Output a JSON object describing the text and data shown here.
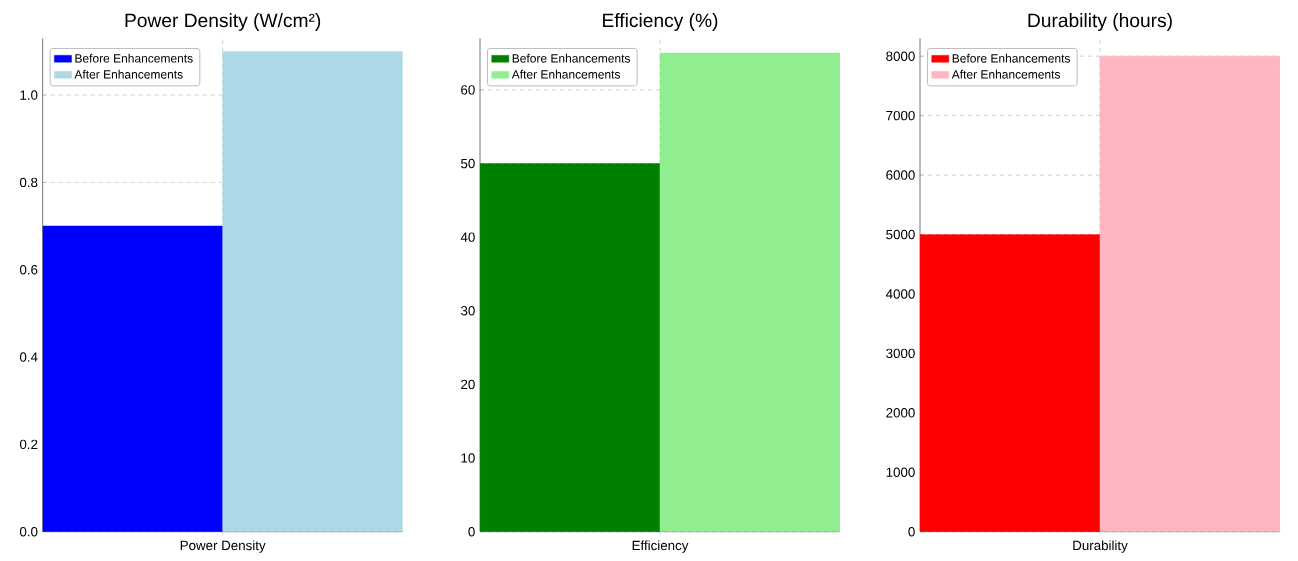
{
  "chart_data": [
    {
      "type": "bar",
      "title": "Power Density (W/cm²)",
      "categories": [
        "Power Density"
      ],
      "series": [
        {
          "name": "Before Enhancements",
          "color": "#0000ff",
          "values": [
            0.7
          ]
        },
        {
          "name": "After Enhancements",
          "color": "#add8e6",
          "values": [
            1.1
          ]
        }
      ],
      "ylim": [
        0,
        1.13
      ],
      "yticks": [
        {
          "value": 0,
          "label": "0.0"
        },
        0.2,
        0.4,
        0.6,
        0.8,
        {
          "value": 1,
          "label": "1.0"
        }
      ],
      "grid": true,
      "legend": "top left"
    },
    {
      "type": "bar",
      "title": "Efficiency (%)",
      "categories": [
        "Efficiency"
      ],
      "series": [
        {
          "name": "Before Enhancements",
          "color": "#008000",
          "values": [
            50
          ]
        },
        {
          "name": "After Enhancements",
          "color": "#90ee90",
          "values": [
            65
          ]
        }
      ],
      "ylim": [
        0,
        67
      ],
      "yticks": [
        0,
        10,
        20,
        30,
        40,
        50,
        60
      ],
      "grid": true,
      "legend": "top left"
    },
    {
      "type": "bar",
      "title": "Durability (hours)",
      "categories": [
        "Durability"
      ],
      "series": [
        {
          "name": "Before Enhancements",
          "color": "#ff0000",
          "values": [
            5000
          ]
        },
        {
          "name": "After Enhancements",
          "color": "#ffb6c1",
          "values": [
            8000
          ]
        }
      ],
      "ylim": [
        0,
        8300
      ],
      "yticks": [
        0,
        1000,
        2000,
        3000,
        4000,
        5000,
        6000,
        7000,
        8000
      ],
      "grid": true,
      "legend": "top left"
    }
  ]
}
